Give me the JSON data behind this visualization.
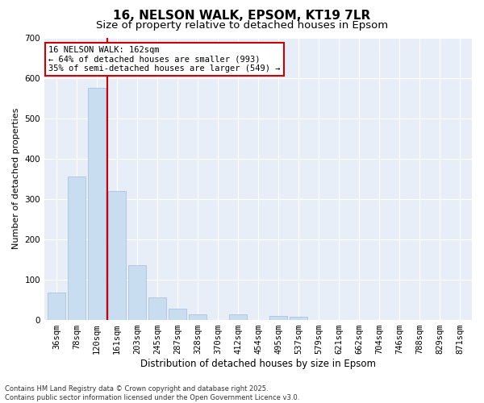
{
  "title": "16, NELSON WALK, EPSOM, KT19 7LR",
  "subtitle": "Size of property relative to detached houses in Epsom",
  "xlabel": "Distribution of detached houses by size in Epsom",
  "ylabel": "Number of detached properties",
  "categories": [
    "36sqm",
    "78sqm",
    "120sqm",
    "161sqm",
    "203sqm",
    "245sqm",
    "287sqm",
    "328sqm",
    "370sqm",
    "412sqm",
    "454sqm",
    "495sqm",
    "537sqm",
    "579sqm",
    "621sqm",
    "662sqm",
    "704sqm",
    "746sqm",
    "788sqm",
    "829sqm",
    "871sqm"
  ],
  "values": [
    68,
    355,
    575,
    320,
    135,
    55,
    27,
    13,
    0,
    13,
    0,
    10,
    7,
    0,
    0,
    0,
    0,
    0,
    0,
    0,
    0
  ],
  "bar_color": "#c9ddf0",
  "bar_edge_color": "#a0bcd8",
  "vline_color": "#cc0000",
  "annotation_text": "16 NELSON WALK: 162sqm\n← 64% of detached houses are smaller (993)\n35% of semi-detached houses are larger (549) →",
  "annotation_box_facecolor": "#ffffff",
  "annotation_box_edgecolor": "#cc0000",
  "ylim": [
    0,
    700
  ],
  "yticks": [
    0,
    100,
    200,
    300,
    400,
    500,
    600,
    700
  ],
  "footnote": "Contains HM Land Registry data © Crown copyright and database right 2025.\nContains public sector information licensed under the Open Government Licence v3.0.",
  "bg_color": "#e8eef8",
  "title_fontsize": 11,
  "subtitle_fontsize": 9.5,
  "xlabel_fontsize": 8.5,
  "ylabel_fontsize": 8,
  "tick_fontsize": 7.5,
  "annot_fontsize": 7.5,
  "footnote_fontsize": 6
}
